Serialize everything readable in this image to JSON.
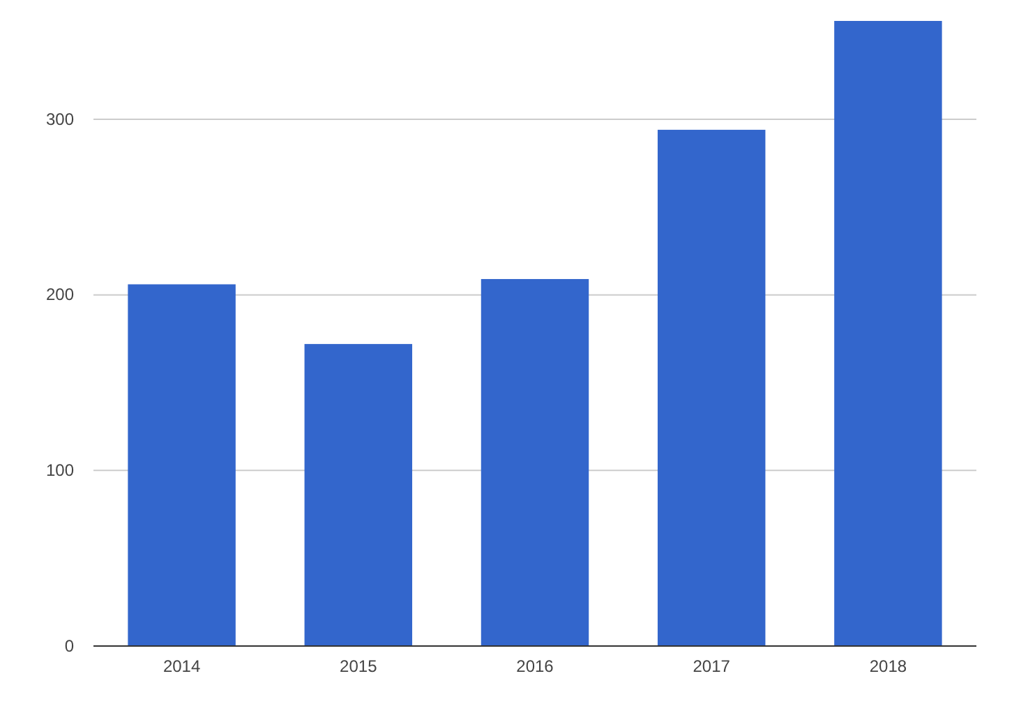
{
  "chart_data": {
    "type": "bar",
    "categories": [
      "2014",
      "2015",
      "2016",
      "2017",
      "2018"
    ],
    "values": [
      206,
      172,
      209,
      294,
      356
    ],
    "color": "#3366cc",
    "ylim": [
      0,
      356
    ],
    "yticks": [
      0,
      100,
      200,
      300
    ],
    "grid": "y"
  }
}
